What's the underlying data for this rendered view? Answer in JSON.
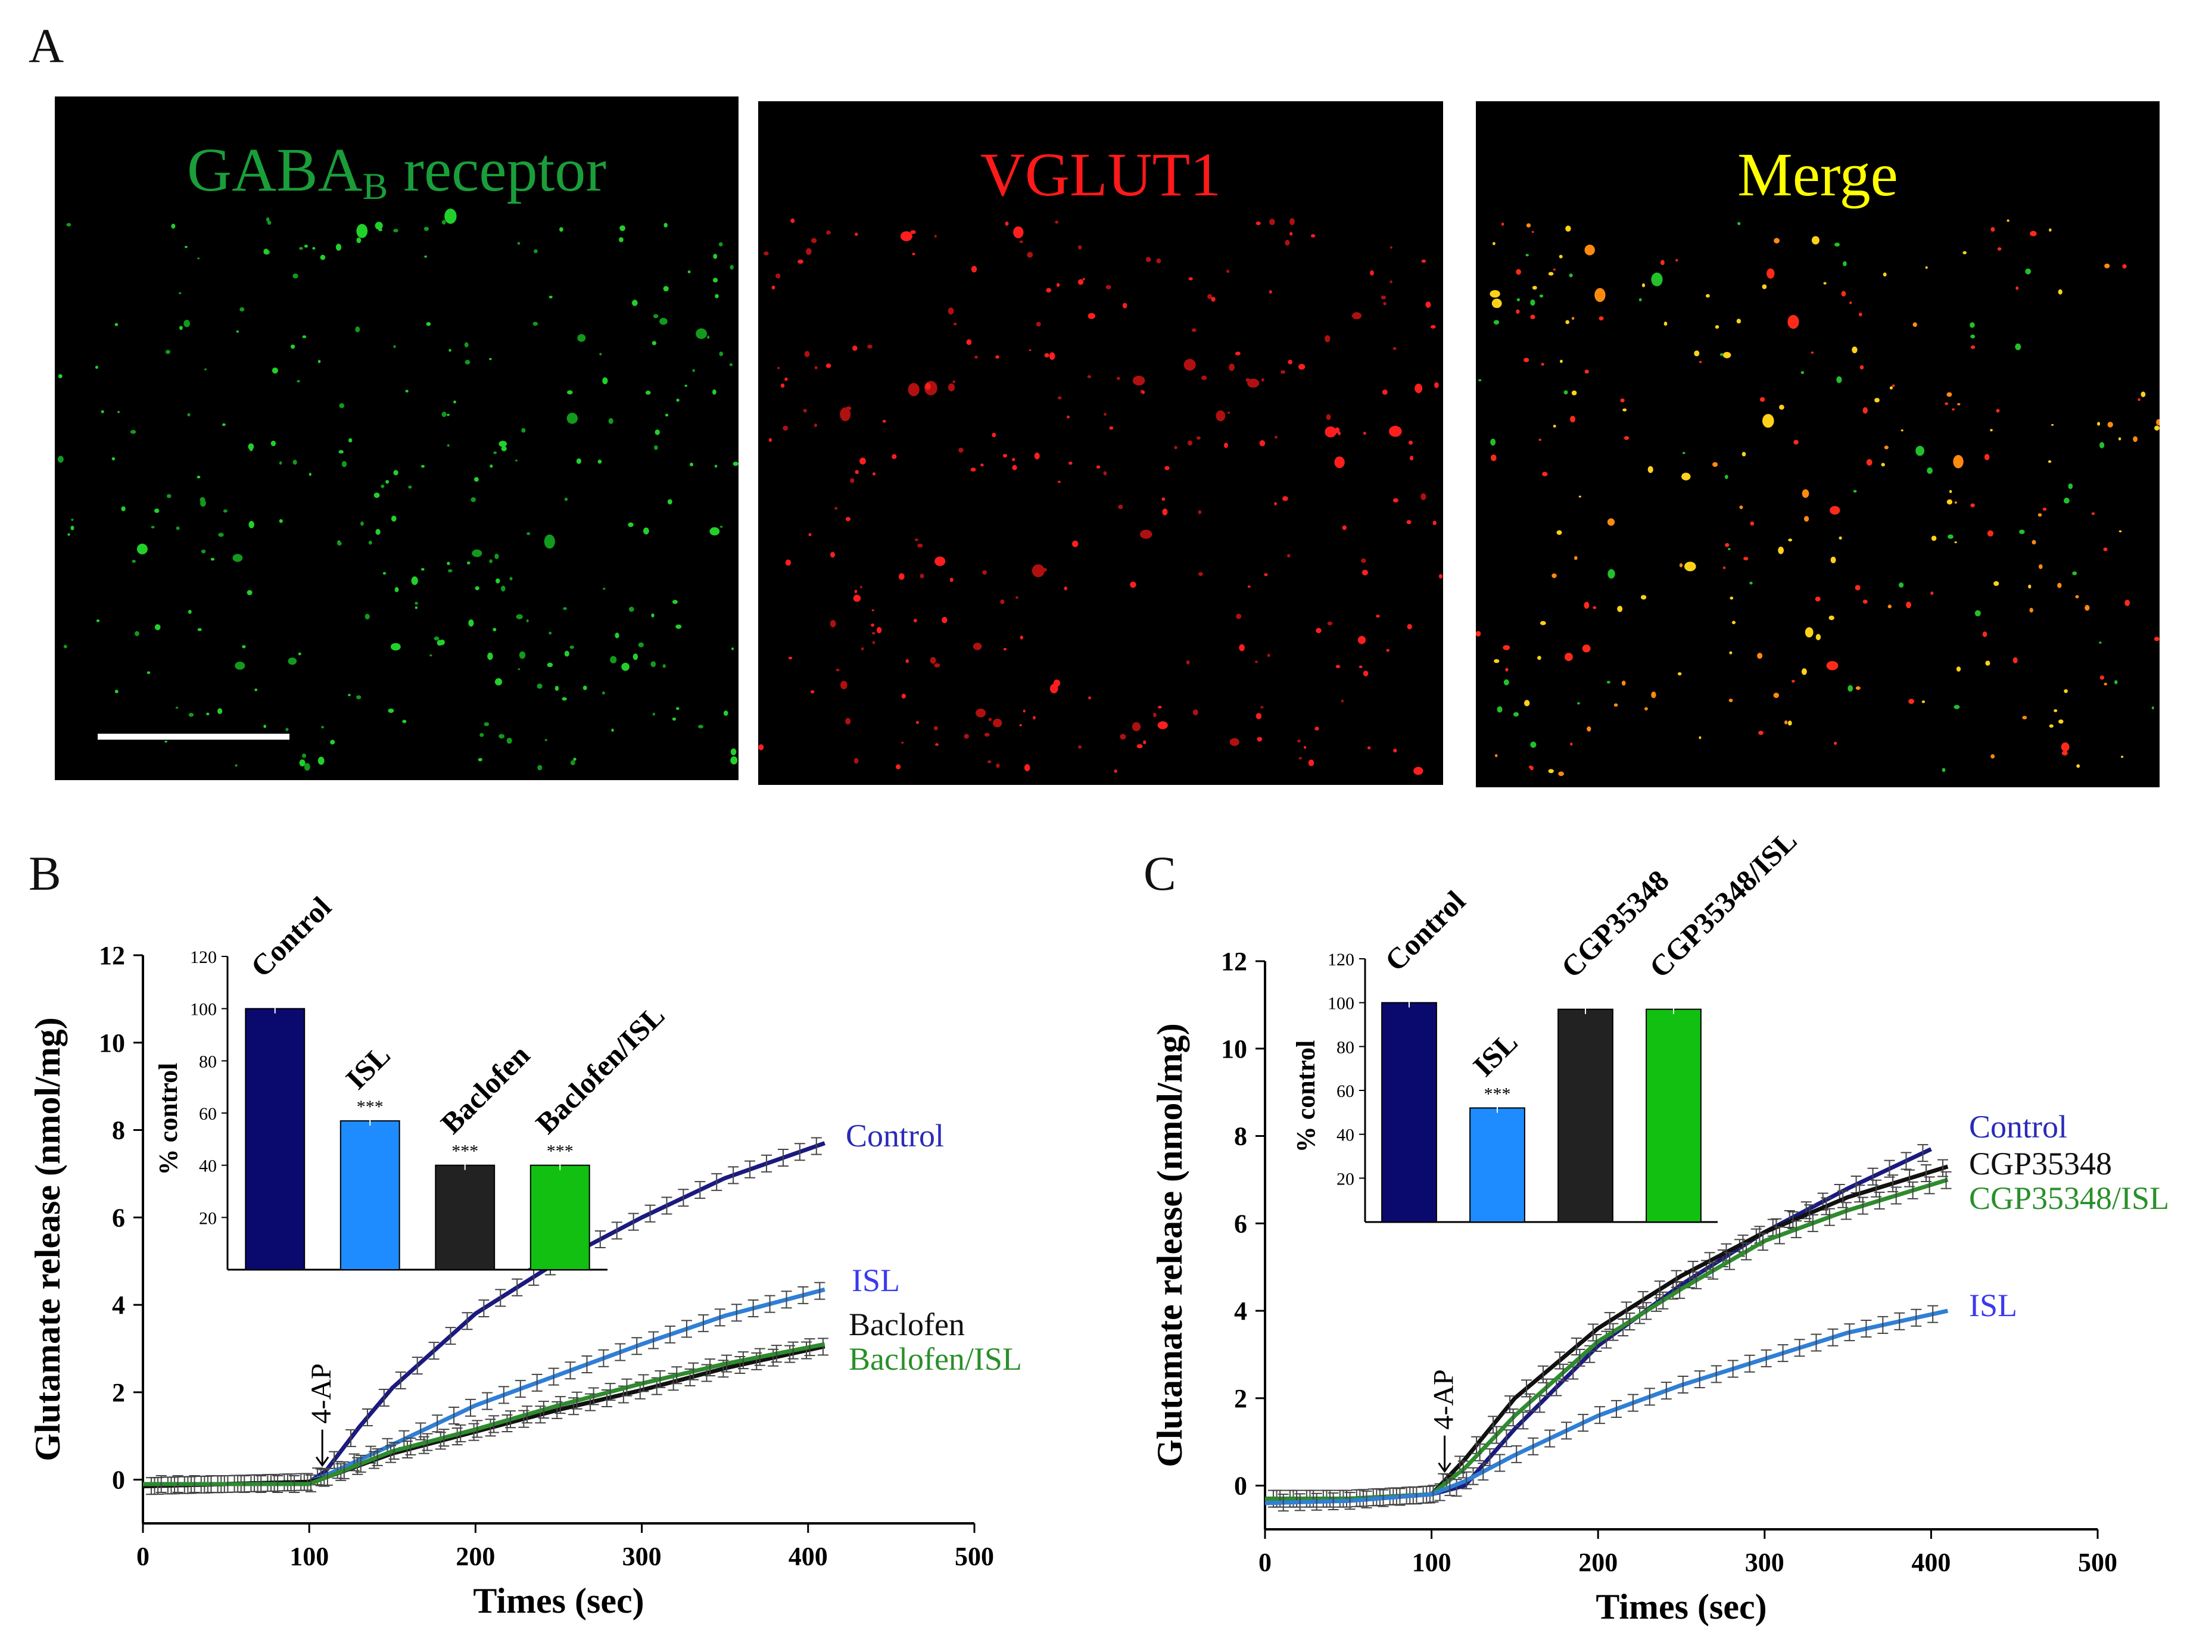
{
  "panels": {
    "A": {
      "letter": "A",
      "images": [
        {
          "label_main": "GABA",
          "label_sub": "B",
          "label_rest": " receptor",
          "color": "#1a9e3a",
          "dots": "green"
        },
        {
          "label_main": "VGLUT1",
          "label_sub": "",
          "label_rest": "",
          "color": "#ff1a1a",
          "dots": "red"
        },
        {
          "label_main": "Merge",
          "label_sub": "",
          "label_rest": "",
          "color": "#ffff00",
          "dots": "merge"
        }
      ]
    },
    "B": {
      "letter": "B"
    },
    "C": {
      "letter": "C"
    }
  },
  "chart_data": [
    {
      "id": "B-main",
      "type": "line",
      "xlabel": "Times (sec)",
      "ylabel": "Glutamate release (nmol/mg)",
      "xlim": [
        0,
        500
      ],
      "ylim": [
        -1,
        12
      ],
      "xticks": [
        0,
        100,
        200,
        300,
        400,
        500
      ],
      "yticks": [
        0,
        2,
        4,
        6,
        8,
        10,
        12
      ],
      "annotation": {
        "text": "4-AP",
        "x": 105
      },
      "error_bars": true,
      "series": [
        {
          "name": "Control",
          "color": "#1a1a80",
          "label_color": "#2a2ab8",
          "x": [
            0,
            50,
            100,
            110,
            130,
            150,
            200,
            250,
            300,
            350,
            410
          ],
          "y": [
            -0.15,
            -0.1,
            -0.05,
            0.2,
            1.2,
            2.1,
            3.8,
            5.0,
            6.0,
            6.9,
            7.7
          ]
        },
        {
          "name": "ISL",
          "color": "#2f7fd6",
          "label_color": "#3a3af0",
          "x": [
            0,
            50,
            100,
            110,
            150,
            200,
            250,
            300,
            350,
            410
          ],
          "y": [
            -0.15,
            -0.1,
            -0.05,
            0.1,
            0.8,
            1.7,
            2.4,
            3.1,
            3.75,
            4.35
          ]
        },
        {
          "name": "Baclofen",
          "color": "#111111",
          "label_color": "#111111",
          "x": [
            0,
            50,
            100,
            110,
            150,
            200,
            250,
            300,
            350,
            410
          ],
          "y": [
            -0.15,
            -0.1,
            -0.05,
            0.05,
            0.6,
            1.1,
            1.6,
            2.05,
            2.55,
            3.05
          ]
        },
        {
          "name": "Baclofen/ISL",
          "color": "#2e8b2e",
          "label_color": "#2a8f2a",
          "x": [
            0,
            50,
            100,
            110,
            150,
            200,
            250,
            300,
            350,
            410
          ],
          "y": [
            -0.1,
            -0.1,
            -0.1,
            0.05,
            0.65,
            1.15,
            1.7,
            2.2,
            2.65,
            3.1
          ]
        }
      ]
    },
    {
      "id": "B-inset",
      "type": "bar",
      "ylabel": "% control",
      "ylim": [
        0,
        120
      ],
      "yticks": [
        20,
        40,
        60,
        80,
        100,
        120
      ],
      "categories": [
        "Control",
        "ISL",
        "Baclofen",
        "Baclofen/ISL"
      ],
      "values": [
        100,
        57,
        40,
        40
      ],
      "colors": [
        "#0a0a6e",
        "#1e8cff",
        "#222222",
        "#11c011"
      ],
      "significance": [
        "",
        "***",
        "***",
        "***"
      ]
    },
    {
      "id": "C-main",
      "type": "line",
      "xlabel": "Times (sec)",
      "ylabel": "Glutamate release (nmol/mg)",
      "xlim": [
        0,
        500
      ],
      "ylim": [
        -1,
        12
      ],
      "xticks": [
        0,
        100,
        200,
        300,
        400,
        500
      ],
      "yticks": [
        0,
        2,
        4,
        6,
        8,
        10,
        12
      ],
      "annotation": {
        "text": "4-AP",
        "x": 105
      },
      "error_bars": true,
      "series": [
        {
          "name": "Control",
          "color": "#1a1a80",
          "label_color": "#2a2ab8",
          "x": [
            0,
            50,
            100,
            120,
            150,
            200,
            250,
            300,
            350,
            400
          ],
          "y": [
            -0.3,
            -0.3,
            -0.2,
            0.0,
            1.3,
            3.2,
            4.6,
            5.8,
            6.8,
            7.7
          ]
        },
        {
          "name": "CGP35348",
          "color": "#111111",
          "label_color": "#111111",
          "x": [
            0,
            50,
            100,
            120,
            150,
            200,
            250,
            300,
            350,
            410
          ],
          "y": [
            -0.3,
            -0.3,
            -0.2,
            0.6,
            2.0,
            3.6,
            4.8,
            5.8,
            6.6,
            7.3
          ]
        },
        {
          "name": "CGP35348/ISL",
          "color": "#2e8b2e",
          "label_color": "#2a8f2a",
          "x": [
            0,
            50,
            100,
            120,
            150,
            200,
            250,
            300,
            350,
            410
          ],
          "y": [
            -0.3,
            -0.3,
            -0.2,
            0.4,
            1.6,
            3.3,
            4.5,
            5.6,
            6.3,
            7.0
          ]
        },
        {
          "name": "ISL",
          "color": "#2f7fd6",
          "label_color": "#3a3af0",
          "x": [
            0,
            50,
            100,
            120,
            150,
            200,
            250,
            300,
            350,
            410
          ],
          "y": [
            -0.4,
            -0.35,
            -0.2,
            0.1,
            0.7,
            1.6,
            2.3,
            2.9,
            3.5,
            4.0
          ]
        }
      ]
    },
    {
      "id": "C-inset",
      "type": "bar",
      "ylabel": "% control",
      "ylim": [
        0,
        120
      ],
      "yticks": [
        20,
        40,
        60,
        80,
        100,
        120
      ],
      "categories": [
        "Control",
        "ISL",
        "CGP35348",
        "CGP35348/ISL"
      ],
      "values": [
        100,
        52,
        97,
        97
      ],
      "colors": [
        "#0a0a6e",
        "#1e8cff",
        "#222222",
        "#11c011"
      ],
      "significance": [
        "",
        "***",
        "",
        ""
      ]
    }
  ]
}
